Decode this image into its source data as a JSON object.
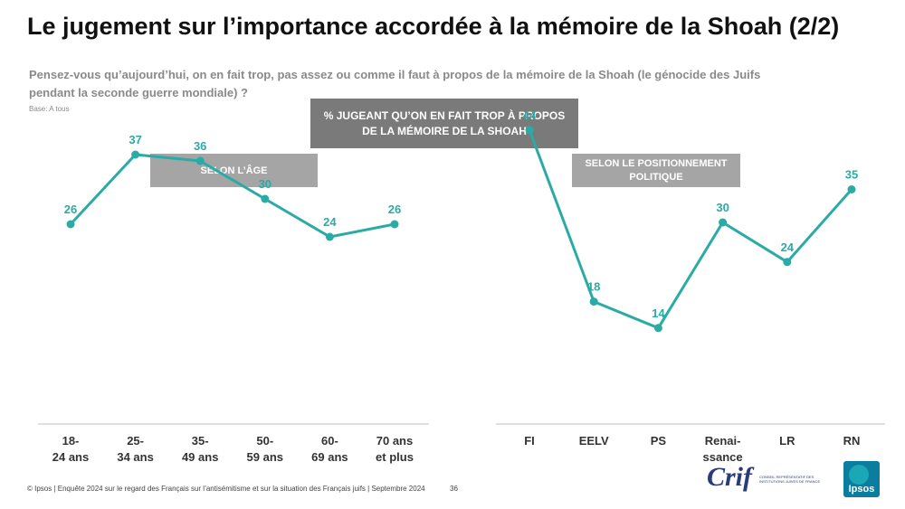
{
  "title": "Le jugement sur l’importance accordée à la mémoire de la Shoah (2/2)",
  "question": "Pensez-vous qu’aujourd’hui, on en fait trop, pas assez ou comme il faut à propos de la mémoire de la Shoah (le génocide des Juifs pendant la seconde guerre mondiale) ?",
  "base": "Base: A tous",
  "main_label": "% JUGEANT QU’ON EN FAIT TROP À PROPOS DE LA MÉMOIRE DE LA SHOAH",
  "age_label": "SELON L’ÂGE",
  "pol_label": "SELON LE POSITIONNEMENT POLITIQUE",
  "footer": "© Ipsos | Enquête 2024 sur le regard des Français sur l’antisémitisme et sur la situation des Français juifs | Septembre 2024",
  "page_number": "36",
  "logos": {
    "crif": "Crif",
    "crif_sub": "CONSEIL REPRÉSENTATIF DES INSTITUTIONS JUIVES DE FRANCE",
    "ipsos": "Ipsos"
  },
  "colors": {
    "series": "#2aaba6",
    "label": "#2aaba6",
    "axis": "#bfbfbf"
  },
  "chart_data": [
    {
      "type": "line",
      "title": "SELON L’ÂGE",
      "categories": [
        [
          "18-",
          "24 ans"
        ],
        [
          "25-",
          "34 ans"
        ],
        [
          "35-",
          "49 ans"
        ],
        [
          "50-",
          "59 ans"
        ],
        [
          "60-",
          "69 ans"
        ],
        [
          "70 ans",
          "et plus"
        ]
      ],
      "values": [
        26,
        37,
        36,
        30,
        24,
        26
      ],
      "ylim": [
        0,
        50
      ],
      "grid": false,
      "data_labels": true
    },
    {
      "type": "line",
      "title": "SELON LE POSITIONNEMENT POLITIQUE",
      "categories": [
        [
          "FI"
        ],
        [
          "EELV"
        ],
        [
          "PS"
        ],
        [
          "Renai-",
          "ssance"
        ],
        [
          "LR"
        ],
        [
          "RN"
        ]
      ],
      "values": [
        44,
        18,
        14,
        30,
        24,
        35
      ],
      "ylim": [
        0,
        50
      ],
      "grid": false,
      "data_labels": true
    }
  ]
}
